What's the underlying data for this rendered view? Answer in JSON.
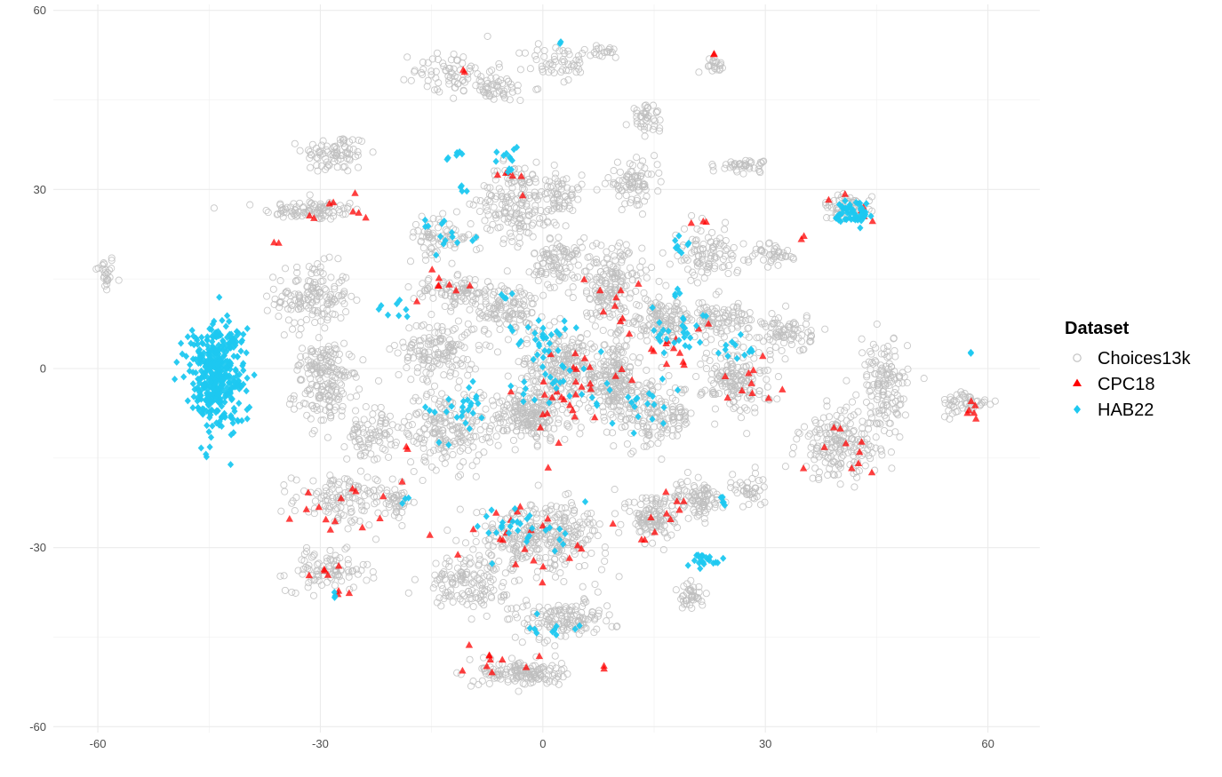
{
  "chart_data": {
    "type": "scatter",
    "title": "",
    "xlabel": "",
    "ylabel": "",
    "xlim": [
      -66,
      67
    ],
    "ylim": [
      -61,
      61
    ],
    "x_ticks": [
      -60,
      -30,
      0,
      30,
      60
    ],
    "y_ticks": [
      -60,
      -30,
      0,
      30,
      60
    ],
    "x_tick_labels": [
      "-60",
      "-30",
      "0",
      "30",
      "60"
    ],
    "y_tick_labels": [
      "-60",
      "-30",
      "0",
      "30",
      "60"
    ],
    "grid": true,
    "legend": {
      "title": "Dataset",
      "placement": "right",
      "entries": [
        "Choices13k",
        "CPC18",
        "HAB22"
      ]
    },
    "series": [
      {
        "name": "Choices13k",
        "marker": "open-circle",
        "color": "#bebebe",
        "clusters": [
          {
            "cx": -59,
            "cy": 16,
            "sx": 1.2,
            "sy": 3,
            "n": 25
          },
          {
            "cx": -31,
            "cy": 26.5,
            "sx": 6,
            "sy": 1.5,
            "n": 90
          },
          {
            "cx": -28,
            "cy": 36,
            "sx": 4,
            "sy": 3,
            "n": 80
          },
          {
            "cx": -31,
            "cy": 12,
            "sx": 4.5,
            "sy": 5,
            "n": 150
          },
          {
            "cx": -30,
            "cy": 1,
            "sx": 3,
            "sy": 3,
            "n": 70
          },
          {
            "cx": -29,
            "cy": -4,
            "sx": 4,
            "sy": 5,
            "n": 120
          },
          {
            "cx": -23,
            "cy": -11,
            "sx": 3,
            "sy": 4,
            "n": 80
          },
          {
            "cx": -27,
            "cy": -22,
            "sx": 6,
            "sy": 4,
            "n": 120
          },
          {
            "cx": -29,
            "cy": -34,
            "sx": 5,
            "sy": 3,
            "n": 90
          },
          {
            "cx": -20,
            "cy": -22,
            "sx": 2,
            "sy": 3,
            "n": 40
          },
          {
            "cx": -12,
            "cy": 50,
            "sx": 5,
            "sy": 3,
            "n": 60
          },
          {
            "cx": -7,
            "cy": 47,
            "sx": 5,
            "sy": 2,
            "n": 60
          },
          {
            "cx": 2,
            "cy": 51,
            "sx": 4,
            "sy": 3,
            "n": 50
          },
          {
            "cx": 8,
            "cy": 53,
            "sx": 3,
            "sy": 1,
            "n": 20
          },
          {
            "cx": -4,
            "cy": 28,
            "sx": 4,
            "sy": 6,
            "n": 150
          },
          {
            "cx": 2,
            "cy": 29,
            "sx": 3,
            "sy": 4,
            "n": 80
          },
          {
            "cx": -14,
            "cy": 22,
            "sx": 4,
            "sy": 3,
            "n": 70
          },
          {
            "cx": -12,
            "cy": 13,
            "sx": 5,
            "sy": 2,
            "n": 80
          },
          {
            "cx": -14,
            "cy": 3,
            "sx": 5,
            "sy": 5,
            "n": 150
          },
          {
            "cx": -13,
            "cy": -10,
            "sx": 5,
            "sy": 6,
            "n": 180
          },
          {
            "cx": -5,
            "cy": 10,
            "sx": 4,
            "sy": 4,
            "n": 120
          },
          {
            "cx": 2,
            "cy": 18,
            "sx": 3,
            "sy": 4,
            "n": 100
          },
          {
            "cx": 3,
            "cy": 0,
            "sx": 6,
            "sy": 6,
            "n": 250
          },
          {
            "cx": -2,
            "cy": -8,
            "sx": 5,
            "sy": 4,
            "n": 200
          },
          {
            "cx": 9,
            "cy": 14,
            "sx": 4,
            "sy": 6,
            "n": 170
          },
          {
            "cx": 10,
            "cy": -2,
            "sx": 3,
            "sy": 6,
            "n": 160
          },
          {
            "cx": 12,
            "cy": 31,
            "sx": 3,
            "sy": 3,
            "n": 80
          },
          {
            "cx": 14,
            "cy": 42,
            "sx": 2,
            "sy": 2,
            "n": 40
          },
          {
            "cx": 15,
            "cy": -8,
            "sx": 5,
            "sy": 5,
            "n": 160
          },
          {
            "cx": 16,
            "cy": 8,
            "sx": 4,
            "sy": 3,
            "n": 120
          },
          {
            "cx": 22,
            "cy": 19,
            "sx": 4,
            "sy": 4,
            "n": 100
          },
          {
            "cx": 24,
            "cy": 8,
            "sx": 4,
            "sy": 3,
            "n": 100
          },
          {
            "cx": 27,
            "cy": 34,
            "sx": 3,
            "sy": 1,
            "n": 40
          },
          {
            "cx": 23,
            "cy": 51,
            "sx": 1.5,
            "sy": 1,
            "n": 20
          },
          {
            "cx": 26,
            "cy": -2,
            "sx": 4,
            "sy": 5,
            "n": 150
          },
          {
            "cx": 31,
            "cy": 19,
            "sx": 3,
            "sy": 2,
            "n": 40
          },
          {
            "cx": 33,
            "cy": 6,
            "sx": 3,
            "sy": 3,
            "n": 80
          },
          {
            "cx": 41,
            "cy": 27,
            "sx": 3,
            "sy": 2,
            "n": 50
          },
          {
            "cx": 40,
            "cy": -13,
            "sx": 5,
            "sy": 5,
            "n": 180
          },
          {
            "cx": 46,
            "cy": -3,
            "sx": 3,
            "sy": 7,
            "n": 140
          },
          {
            "cx": 57,
            "cy": -6,
            "sx": 3,
            "sy": 2,
            "n": 50
          },
          {
            "cx": 0,
            "cy": -28,
            "sx": 8,
            "sy": 5,
            "n": 300
          },
          {
            "cx": -10,
            "cy": -36,
            "sx": 5,
            "sy": 4,
            "n": 140
          },
          {
            "cx": 3,
            "cy": -42,
            "sx": 6,
            "sy": 3,
            "n": 140
          },
          {
            "cx": -3,
            "cy": -51,
            "sx": 5,
            "sy": 2,
            "n": 140
          },
          {
            "cx": 15,
            "cy": -25,
            "sx": 3,
            "sy": 4,
            "n": 120
          },
          {
            "cx": 21,
            "cy": -22,
            "sx": 3,
            "sy": 3,
            "n": 90
          },
          {
            "cx": 20,
            "cy": -38,
            "sx": 1.5,
            "sy": 2,
            "n": 40
          },
          {
            "cx": 28,
            "cy": -20,
            "sx": 2,
            "sy": 3,
            "n": 40
          }
        ]
      },
      {
        "name": "CPC18",
        "marker": "filled-triangle",
        "color": "#ff0000",
        "clusters": [
          {
            "cx": -36,
            "cy": 21,
            "sx": 0.3,
            "sy": 0.3,
            "n": 2
          },
          {
            "cx": -28,
            "cy": 26,
            "sx": 5,
            "sy": 3,
            "n": 8
          },
          {
            "cx": -28,
            "cy": -24,
            "sx": 6,
            "sy": 5,
            "n": 14
          },
          {
            "cx": -29,
            "cy": -36,
            "sx": 3,
            "sy": 3,
            "n": 8
          },
          {
            "cx": -13,
            "cy": 14,
            "sx": 4,
            "sy": 3,
            "n": 8
          },
          {
            "cx": -5,
            "cy": 32,
            "sx": 3,
            "sy": 3,
            "n": 6
          },
          {
            "cx": 3,
            "cy": -3,
            "sx": 6,
            "sy": 7,
            "n": 30
          },
          {
            "cx": -3,
            "cy": -28,
            "sx": 8,
            "sy": 5,
            "n": 22
          },
          {
            "cx": -7,
            "cy": -49,
            "sx": 4,
            "sy": 2,
            "n": 10
          },
          {
            "cx": 8,
            "cy": -50,
            "sx": 0.5,
            "sy": 0.5,
            "n": 2
          },
          {
            "cx": 10,
            "cy": 12,
            "sx": 4,
            "sy": 5,
            "n": 10
          },
          {
            "cx": 17,
            "cy": 5,
            "sx": 5,
            "sy": 5,
            "n": 12
          },
          {
            "cx": 17,
            "cy": -25,
            "sx": 4,
            "sy": 5,
            "n": 10
          },
          {
            "cx": 27,
            "cy": -3,
            "sx": 4,
            "sy": 4,
            "n": 10
          },
          {
            "cx": 35,
            "cy": 22,
            "sx": 0.5,
            "sy": 0.5,
            "n": 2
          },
          {
            "cx": 42,
            "cy": 27,
            "sx": 3,
            "sy": 2,
            "n": 6
          },
          {
            "cx": 40,
            "cy": -14,
            "sx": 5,
            "sy": 4,
            "n": 10
          },
          {
            "cx": 58,
            "cy": -6,
            "sx": 2,
            "sy": 2,
            "n": 6
          },
          {
            "cx": 23,
            "cy": 53,
            "sx": 0.4,
            "sy": 0.4,
            "n": 2
          },
          {
            "cx": -11,
            "cy": 50,
            "sx": 1,
            "sy": 1,
            "n": 2
          },
          {
            "cx": 21,
            "cy": 25,
            "sx": 1,
            "sy": 1,
            "n": 3
          },
          {
            "cx": -18,
            "cy": -13,
            "sx": 1,
            "sy": 1,
            "n": 2
          }
        ]
      },
      {
        "name": "HAB22",
        "marker": "filled-diamond",
        "color": "#1ec8f0",
        "clusters": [
          {
            "cx": -44,
            "cy": -1,
            "sx": 3.5,
            "sy": 8,
            "n": 420
          },
          {
            "cx": -13,
            "cy": 22,
            "sx": 4,
            "sy": 3,
            "n": 14
          },
          {
            "cx": -4,
            "cy": 35,
            "sx": 2,
            "sy": 2,
            "n": 12
          },
          {
            "cx": -12,
            "cy": 36,
            "sx": 2,
            "sy": 1,
            "n": 6
          },
          {
            "cx": -11,
            "cy": 30,
            "sx": 1,
            "sy": 1,
            "n": 4
          },
          {
            "cx": -20,
            "cy": 10,
            "sx": 2,
            "sy": 2,
            "n": 8
          },
          {
            "cx": 0,
            "cy": 5,
            "sx": 4,
            "sy": 3,
            "n": 26
          },
          {
            "cx": -12,
            "cy": -7,
            "sx": 4,
            "sy": 5,
            "n": 26
          },
          {
            "cx": 3,
            "cy": -3,
            "sx": 6,
            "sy": 6,
            "n": 30
          },
          {
            "cx": 13,
            "cy": -7,
            "sx": 4,
            "sy": 4,
            "n": 16
          },
          {
            "cx": 18,
            "cy": 6,
            "sx": 4,
            "sy": 3,
            "n": 26
          },
          {
            "cx": 26,
            "cy": 4,
            "sx": 3,
            "sy": 3,
            "n": 12
          },
          {
            "cx": 19,
            "cy": 21,
            "sx": 1,
            "sy": 2,
            "n": 8
          },
          {
            "cx": 42,
            "cy": 26,
            "sx": 2.5,
            "sy": 2,
            "n": 55
          },
          {
            "cx": -2,
            "cy": -27,
            "sx": 6,
            "sy": 4,
            "n": 30
          },
          {
            "cx": 22,
            "cy": -32,
            "sx": 2,
            "sy": 1,
            "n": 22
          },
          {
            "cx": 2,
            "cy": -43,
            "sx": 5,
            "sy": 2,
            "n": 10
          },
          {
            "cx": -19,
            "cy": -22,
            "sx": 1,
            "sy": 1,
            "n": 3
          },
          {
            "cx": -28,
            "cy": -38,
            "sx": 1,
            "sy": 1,
            "n": 3
          },
          {
            "cx": 24,
            "cy": -22,
            "sx": 1,
            "sy": 1,
            "n": 5
          },
          {
            "cx": 58,
            "cy": 2,
            "sx": 1,
            "sy": 1,
            "n": 2
          },
          {
            "cx": 2,
            "cy": 54,
            "sx": 1,
            "sy": 1,
            "n": 2
          },
          {
            "cx": 18,
            "cy": 13,
            "sx": 1,
            "sy": 1,
            "n": 4
          },
          {
            "cx": -5,
            "cy": 12,
            "sx": 1,
            "sy": 1,
            "n": 4
          }
        ]
      }
    ]
  }
}
